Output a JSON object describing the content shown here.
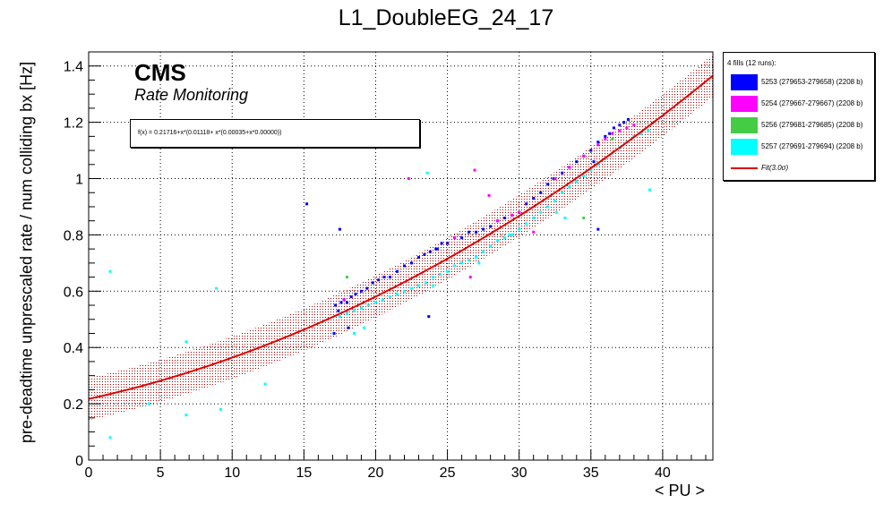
{
  "chart_data": {
    "type": "scatter",
    "title": "L1_DoubleEG_24_17",
    "xlabel": "< PU >",
    "ylabel": "pre-deadtime unprescaled rate / num colliding bx [Hz]",
    "xlim": [
      0,
      43.5
    ],
    "ylim": [
      0,
      1.45
    ],
    "xticks": [
      "0",
      "5",
      "10",
      "15",
      "20",
      "25",
      "30",
      "35",
      "40"
    ],
    "yticks": [
      "0",
      "0.2",
      "0.4",
      "0.6",
      "0.8",
      "1",
      "1.2",
      "1.4"
    ],
    "grid": true,
    "legend_placement": "outside-right",
    "legend_header": "4 fills (12 runs):",
    "cms_label": "CMS",
    "cms_sublabel": "Rate Monitoring",
    "fit_formula": "f(x) = 0.21716+x*(0.01118+ x*(0.00035+x*0.00000))",
    "fit": {
      "name": "Fit(3.0σ)",
      "coefficients": [
        0.21716,
        0.01118,
        0.00035,
        0.0
      ],
      "band_halfwidth": 0.075,
      "color": "#dd0000",
      "x_range": [
        0,
        43.5
      ]
    },
    "series": [
      {
        "name": "5253 (279653-279658) (2208 b)",
        "color": "#0000ff",
        "points": [
          [
            17.2,
            0.55
          ],
          [
            17.4,
            0.53
          ],
          [
            17.6,
            0.56
          ],
          [
            17.8,
            0.57
          ],
          [
            18.0,
            0.56
          ],
          [
            18.3,
            0.58
          ],
          [
            18.6,
            0.59
          ],
          [
            19.0,
            0.6
          ],
          [
            19.4,
            0.61
          ],
          [
            19.8,
            0.63
          ],
          [
            20.2,
            0.64
          ],
          [
            20.6,
            0.65
          ],
          [
            21.0,
            0.65
          ],
          [
            21.5,
            0.67
          ],
          [
            22.0,
            0.69
          ],
          [
            22.5,
            0.7
          ],
          [
            23.0,
            0.72
          ],
          [
            23.4,
            0.73
          ],
          [
            23.8,
            0.74
          ],
          [
            24.2,
            0.75
          ],
          [
            24.6,
            0.77
          ],
          [
            25.0,
            0.77
          ],
          [
            25.5,
            0.79
          ],
          [
            26.0,
            0.79
          ],
          [
            26.5,
            0.81
          ],
          [
            27.0,
            0.81
          ],
          [
            27.5,
            0.82
          ],
          [
            28.0,
            0.83
          ],
          [
            28.5,
            0.85
          ],
          [
            29.0,
            0.86
          ],
          [
            29.5,
            0.87
          ],
          [
            30.0,
            0.88
          ],
          [
            30.5,
            0.91
          ],
          [
            31.0,
            0.93
          ],
          [
            31.5,
            0.95
          ],
          [
            32.0,
            0.98
          ],
          [
            32.5,
            1.0
          ],
          [
            33.0,
            1.02
          ],
          [
            33.5,
            1.04
          ],
          [
            34.0,
            1.06
          ],
          [
            34.5,
            1.08
          ],
          [
            35.0,
            1.1
          ],
          [
            35.5,
            1.13
          ],
          [
            36.0,
            1.15
          ],
          [
            36.3,
            1.16
          ],
          [
            36.6,
            1.18
          ],
          [
            37.0,
            1.19
          ],
          [
            37.3,
            1.2
          ],
          [
            37.6,
            1.21
          ],
          [
            15.2,
            0.91
          ],
          [
            17.5,
            0.82
          ],
          [
            23.7,
            0.51
          ],
          [
            35.2,
            1.06
          ],
          [
            35.5,
            0.82
          ],
          [
            17.1,
            0.45
          ],
          [
            18.1,
            0.47
          ],
          [
            32.4,
            1.0
          ],
          [
            24.3,
            0.75
          ]
        ]
      },
      {
        "name": "5254 (279667-279667) (2208 b)",
        "color": "#ff00ff",
        "points": [
          [
            22.3,
            1.0
          ],
          [
            26.9,
            1.03
          ],
          [
            27.9,
            0.94
          ],
          [
            26.6,
            0.65
          ],
          [
            31.0,
            0.81
          ],
          [
            32.5,
            1.0
          ],
          [
            33.5,
            1.04
          ],
          [
            34.5,
            1.08
          ],
          [
            35.5,
            1.12
          ],
          [
            36.0,
            1.14
          ],
          [
            36.5,
            1.16
          ],
          [
            37.0,
            1.17
          ],
          [
            37.5,
            1.18
          ],
          [
            38.0,
            1.19
          ],
          [
            29.5,
            0.87
          ],
          [
            30.0,
            0.88
          ],
          [
            28.5,
            0.85
          ],
          [
            17.8,
            0.57
          ],
          [
            25.5,
            0.79
          ]
        ]
      },
      {
        "name": "5256 (279681-279685) (2208 b)",
        "color": "#44cc44",
        "points": [
          [
            18.0,
            0.65
          ],
          [
            34.5,
            0.86
          ],
          [
            36.5,
            1.14
          ]
        ]
      },
      {
        "name": "5257 (279691-279694) (2208 b)",
        "color": "#00ffff",
        "points": [
          [
            17.5,
            0.51
          ],
          [
            18.0,
            0.52
          ],
          [
            18.5,
            0.53
          ],
          [
            19.0,
            0.54
          ],
          [
            19.5,
            0.55
          ],
          [
            20.0,
            0.56
          ],
          [
            20.5,
            0.57
          ],
          [
            21.0,
            0.58
          ],
          [
            21.5,
            0.59
          ],
          [
            22.0,
            0.6
          ],
          [
            22.5,
            0.61
          ],
          [
            23.0,
            0.62
          ],
          [
            23.5,
            0.63
          ],
          [
            24.0,
            0.65
          ],
          [
            24.5,
            0.66
          ],
          [
            25.0,
            0.67
          ],
          [
            25.5,
            0.69
          ],
          [
            26.0,
            0.7
          ],
          [
            26.5,
            0.71
          ],
          [
            27.0,
            0.72
          ],
          [
            27.5,
            0.74
          ],
          [
            28.0,
            0.76
          ],
          [
            28.5,
            0.78
          ],
          [
            29.0,
            0.79
          ],
          [
            29.5,
            0.8
          ],
          [
            30.0,
            0.82
          ],
          [
            30.5,
            0.84
          ],
          [
            31.0,
            0.86
          ],
          [
            31.5,
            0.88
          ],
          [
            32.0,
            0.9
          ],
          [
            32.5,
            0.92
          ],
          [
            33.0,
            0.95
          ],
          [
            33.5,
            0.97
          ],
          [
            34.0,
            0.99
          ],
          [
            34.5,
            1.01
          ],
          [
            35.0,
            1.03
          ],
          [
            35.5,
            1.05
          ],
          [
            36.0,
            1.07
          ],
          [
            36.5,
            1.09
          ],
          [
            37.0,
            1.11
          ],
          [
            37.5,
            1.13
          ],
          [
            38.0,
            1.15
          ],
          [
            38.5,
            1.16
          ],
          [
            39.0,
            1.17
          ],
          [
            1.5,
            0.67
          ],
          [
            1.5,
            0.08
          ],
          [
            4.2,
            0.2
          ],
          [
            6.8,
            0.42
          ],
          [
            6.8,
            0.16
          ],
          [
            8.9,
            0.61
          ],
          [
            9.2,
            0.18
          ],
          [
            12.3,
            0.27
          ],
          [
            18.5,
            0.45
          ],
          [
            19.2,
            0.47
          ],
          [
            23.6,
            1.02
          ],
          [
            29.3,
            0.8
          ],
          [
            27.2,
            0.7
          ],
          [
            24.0,
            0.62
          ],
          [
            39.1,
            0.96
          ],
          [
            33.2,
            0.86
          ],
          [
            32.6,
            0.88
          ]
        ]
      }
    ]
  }
}
